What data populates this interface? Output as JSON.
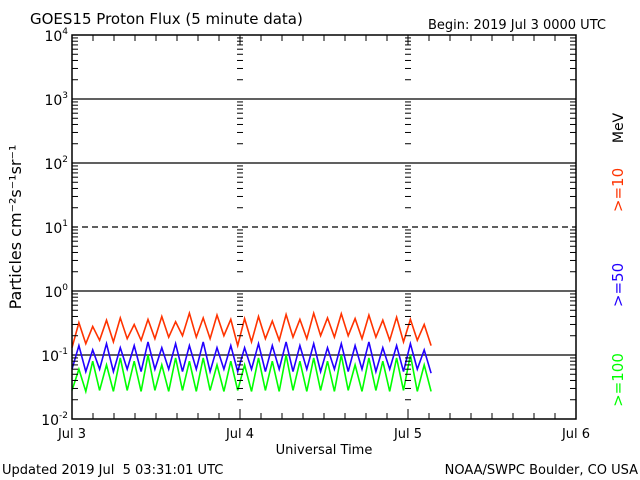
{
  "chart_data": {
    "type": "line",
    "title": "GOES15 Proton Flux (5 minute data)",
    "begin_label": "Begin: 2019 Jul 3 0000 UTC",
    "xlabel": "Universal Time",
    "ylabel": "Particles cm⁻²s⁻¹sr⁻¹",
    "x_unit": "hours since 2019 Jul 3 0000 UTC",
    "xlim": [
      0,
      72
    ],
    "x_ticks": [
      {
        "hours": 0,
        "label": "Jul 3"
      },
      {
        "hours": 24,
        "label": "Jul 4"
      },
      {
        "hours": 48,
        "label": "Jul 5"
      },
      {
        "hours": 72,
        "label": "Jul 6"
      }
    ],
    "ylim": [
      0.01,
      10000
    ],
    "yscale": "log",
    "y_ticks": [
      {
        "exp": "4"
      },
      {
        "exp": "3"
      },
      {
        "exp": "2"
      },
      {
        "exp": "1"
      },
      {
        "exp": "0"
      },
      {
        "exp": "-1"
      },
      {
        "exp": "-2"
      }
    ],
    "legend_unit": "MeV",
    "series": [
      {
        "name": ">=10",
        "color": "#ff3300",
        "values": [
          0.13,
          0.32,
          0.15,
          0.28,
          0.17,
          0.35,
          0.16,
          0.38,
          0.18,
          0.3,
          0.17,
          0.36,
          0.18,
          0.4,
          0.19,
          0.33,
          0.2,
          0.45,
          0.19,
          0.38,
          0.18,
          0.42,
          0.2,
          0.36,
          0.14,
          0.37,
          0.16,
          0.4,
          0.18,
          0.34,
          0.17,
          0.43,
          0.19,
          0.36,
          0.18,
          0.45,
          0.2,
          0.38,
          0.19,
          0.44,
          0.2,
          0.37,
          0.18,
          0.42,
          0.19,
          0.35,
          0.17,
          0.39,
          0.16,
          0.36,
          0.17,
          0.3,
          0.14
        ]
      },
      {
        "name": ">=50",
        "color": "#2200ff",
        "values": [
          0.06,
          0.14,
          0.055,
          0.12,
          0.06,
          0.15,
          0.055,
          0.13,
          0.06,
          0.14,
          0.055,
          0.16,
          0.06,
          0.13,
          0.06,
          0.15,
          0.055,
          0.14,
          0.06,
          0.16,
          0.055,
          0.13,
          0.06,
          0.14,
          0.055,
          0.13,
          0.06,
          0.15,
          0.055,
          0.14,
          0.06,
          0.16,
          0.055,
          0.14,
          0.06,
          0.15,
          0.055,
          0.13,
          0.06,
          0.15,
          0.055,
          0.14,
          0.06,
          0.16,
          0.055,
          0.13,
          0.06,
          0.14,
          0.055,
          0.15,
          0.06,
          0.12,
          0.052
        ]
      },
      {
        "name": ">=100",
        "color": "#00ff00",
        "values": [
          0.028,
          0.06,
          0.027,
          0.08,
          0.028,
          0.07,
          0.027,
          0.09,
          0.028,
          0.08,
          0.027,
          0.1,
          0.028,
          0.07,
          0.027,
          0.09,
          0.028,
          0.08,
          0.027,
          0.09,
          0.028,
          0.07,
          0.027,
          0.08,
          0.028,
          0.07,
          0.027,
          0.09,
          0.028,
          0.08,
          0.027,
          0.1,
          0.028,
          0.08,
          0.027,
          0.09,
          0.028,
          0.08,
          0.027,
          0.1,
          0.028,
          0.07,
          0.027,
          0.09,
          0.028,
          0.08,
          0.027,
          0.09,
          0.028,
          0.1,
          0.027,
          0.07,
          0.027
        ]
      }
    ],
    "series_x_end_hours": 51.3
  },
  "footer": {
    "updated": "Updated 2019 Jul  5 03:31:01 UTC",
    "credit": "NOAA/SWPC Boulder, CO USA"
  }
}
